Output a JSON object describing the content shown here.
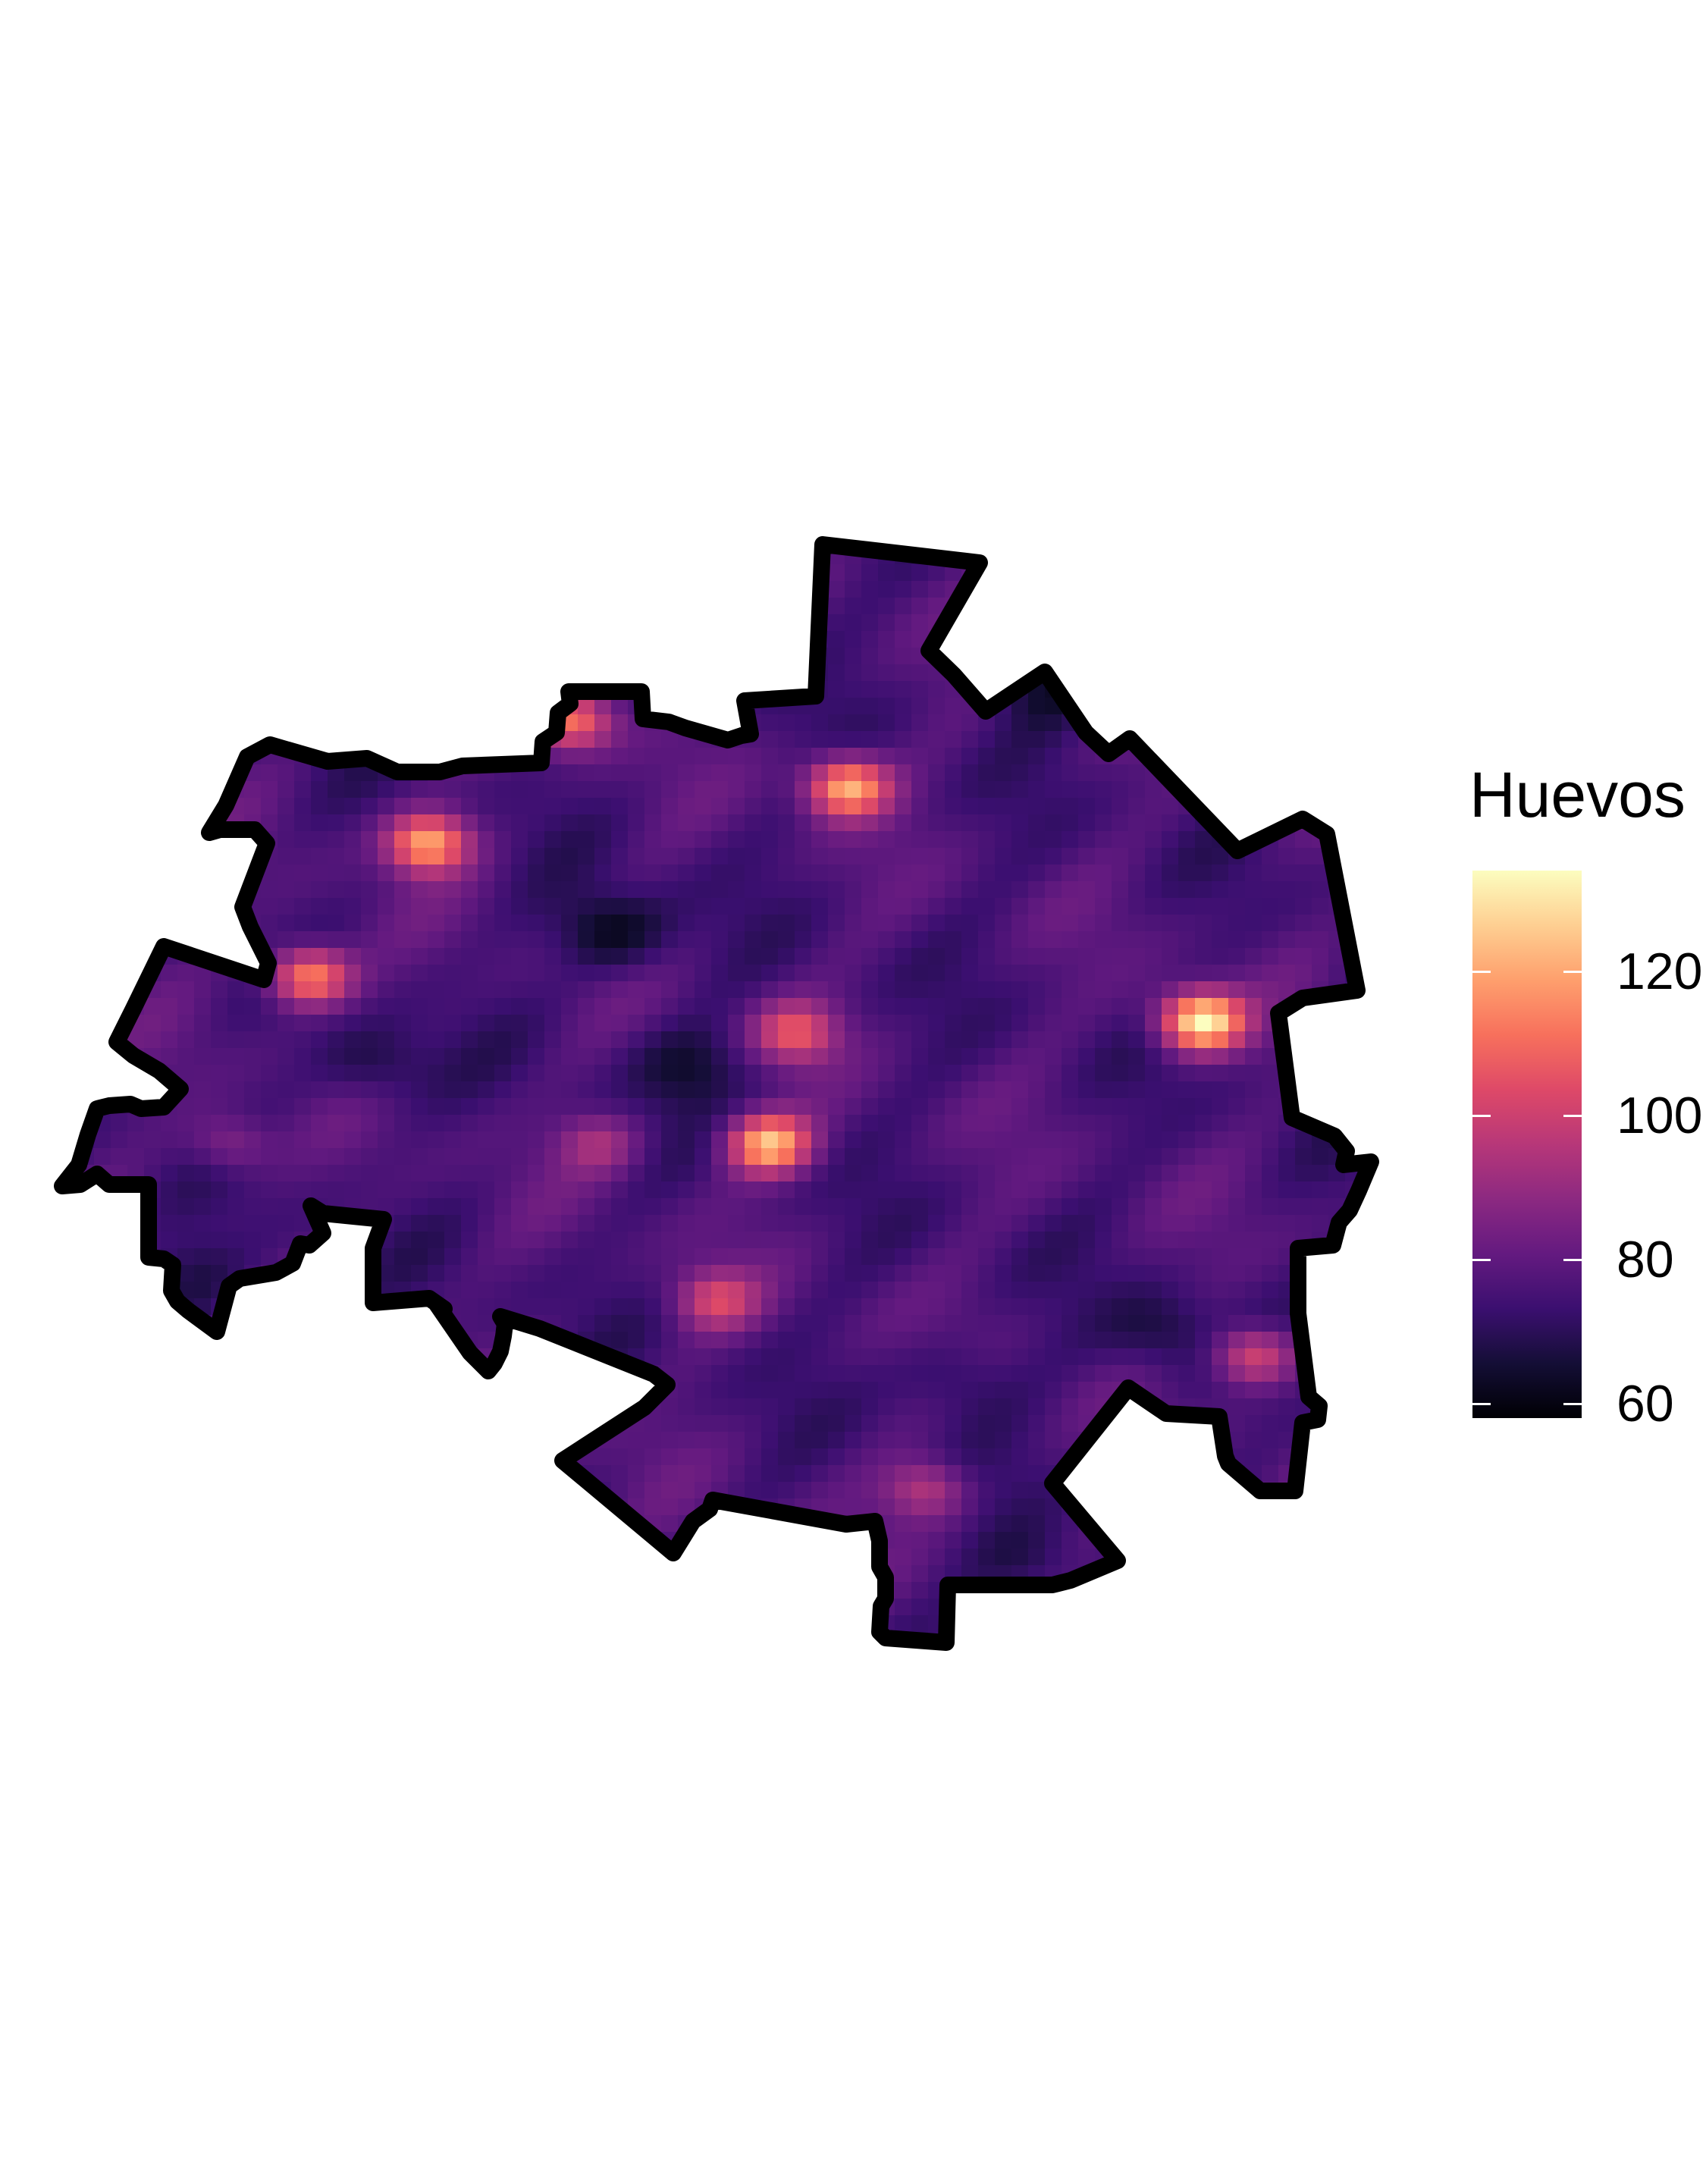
{
  "legend": {
    "title": "Huevos",
    "ticks": [
      {
        "label": "60",
        "value": 60
      },
      {
        "label": "80",
        "value": 80
      },
      {
        "label": "100",
        "value": 100
      },
      {
        "label": "120",
        "value": 120
      }
    ],
    "range": [
      58,
      134
    ],
    "palette": "magma"
  },
  "chart_data": {
    "type": "heatmap",
    "colorscale": "magma",
    "background_value": 76,
    "outline_color": "#000000",
    "hotspots": [
      {
        "name": "",
        "value": 112,
        "cx": 0.39,
        "cy": 0.17
      },
      {
        "name": "",
        "value": 122,
        "cx": 0.6,
        "cy": 0.23
      },
      {
        "name": "",
        "value": 120,
        "cx": 0.28,
        "cy": 0.28
      },
      {
        "name": "",
        "value": 118,
        "cx": 0.19,
        "cy": 0.4
      },
      {
        "name": "",
        "value": 104,
        "cx": 0.56,
        "cy": 0.45
      },
      {
        "name": "",
        "value": 124,
        "cx": 0.54,
        "cy": 0.55
      },
      {
        "name": "",
        "value": 134,
        "cx": 0.87,
        "cy": 0.44
      },
      {
        "name": "",
        "value": 100,
        "cx": 0.5,
        "cy": 0.69
      },
      {
        "name": "",
        "value": 106,
        "cx": 0.91,
        "cy": 0.74
      },
      {
        "name": "",
        "value": 96,
        "cx": 0.66,
        "cy": 0.86
      },
      {
        "name": "",
        "value": 90,
        "cx": 0.13,
        "cy": 0.55
      },
      {
        "name": "",
        "value": 92,
        "cx": 0.41,
        "cy": 0.55
      }
    ],
    "coldspots": [
      {
        "value": 60,
        "cx": 0.42,
        "cy": 0.36
      },
      {
        "value": 64,
        "cx": 0.75,
        "cy": 0.14
      },
      {
        "value": 66,
        "cx": 0.48,
        "cy": 0.48
      },
      {
        "value": 66,
        "cx": 0.24,
        "cy": 0.48
      },
      {
        "value": 68,
        "cx": 0.68,
        "cy": 0.76
      },
      {
        "value": 68,
        "cx": 0.1,
        "cy": 0.67
      },
      {
        "value": 66,
        "cx": 0.84,
        "cy": 0.72
      },
      {
        "value": 68,
        "cx": 0.74,
        "cy": 0.93
      }
    ]
  }
}
